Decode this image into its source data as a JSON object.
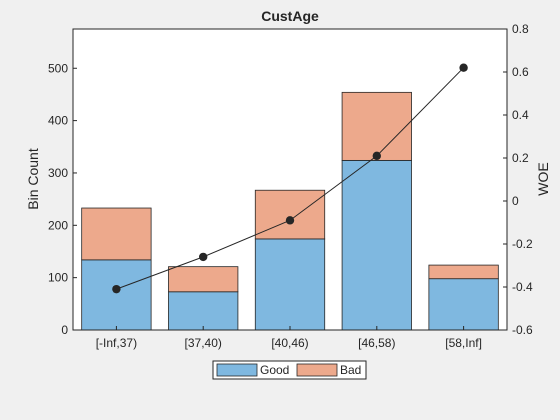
{
  "chart_data": {
    "type": "bar",
    "title": "CustAge",
    "xlabel": "",
    "ylabel": "Bin Count",
    "y2label": "WOE",
    "categories": [
      "[-Inf,37)",
      "[37,40)",
      "[40,46)",
      "[46,58)",
      "[58,Inf]"
    ],
    "stacked": true,
    "ylim": [
      0,
      575
    ],
    "yticks": [
      0,
      100,
      200,
      300,
      400,
      500
    ],
    "y2lim": [
      -0.6,
      0.8
    ],
    "y2ticks": [
      "-0.6",
      "-0.4",
      "-0.2",
      "0",
      "0.2",
      "0.4",
      "0.6",
      "0.8"
    ],
    "series": [
      {
        "name": "Good",
        "color": "#7fb8e0",
        "values": [
          134,
          73,
          174,
          324,
          98
        ]
      },
      {
        "name": "Bad",
        "color": "#eda98c",
        "values": [
          99,
          48,
          93,
          130,
          26
        ]
      }
    ],
    "woe": {
      "values": [
        -0.41,
        -0.26,
        -0.09,
        0.21,
        0.62
      ],
      "color": "#262626"
    },
    "legend": {
      "position": "bottom-center",
      "entries": [
        "Good",
        "Bad"
      ]
    },
    "grid": false
  }
}
